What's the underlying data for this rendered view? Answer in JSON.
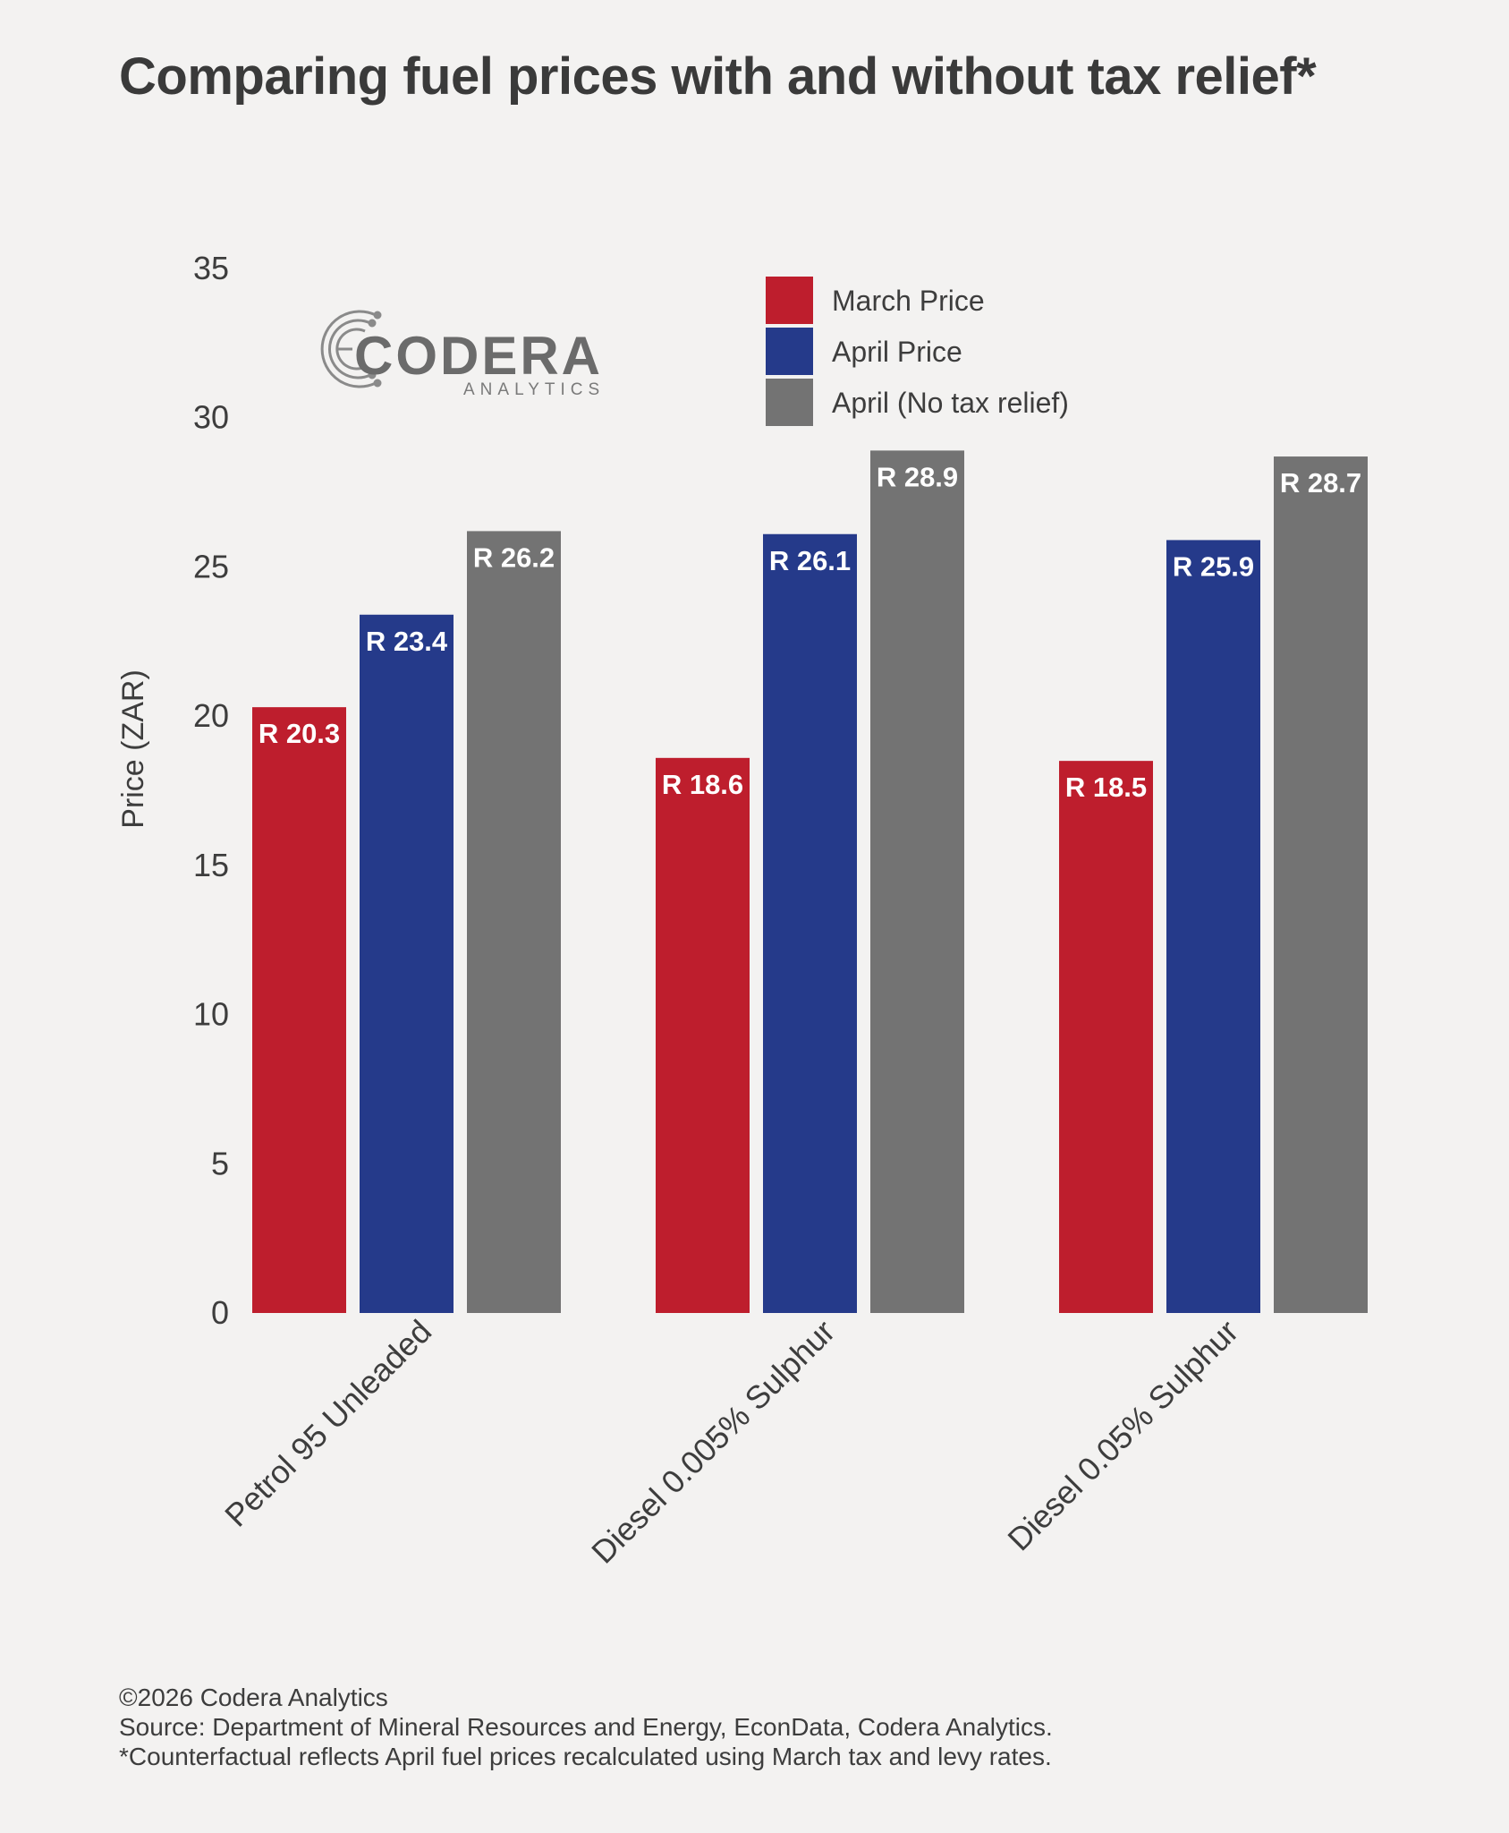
{
  "chart_data": {
    "type": "bar",
    "title": "Comparing fuel prices with and without tax relief*",
    "ylabel": "Price (ZAR)",
    "xlabel": "",
    "ylim": [
      0,
      35
    ],
    "yticks": [
      0,
      5,
      10,
      15,
      20,
      25,
      30,
      35
    ],
    "categories": [
      "Petrol 95 Unleaded",
      "Diesel 0.005% Sulphur",
      "Diesel 0.05% Sulphur"
    ],
    "series": [
      {
        "name": "March Price",
        "color": "#be1e2d",
        "values": [
          20.3,
          18.6,
          18.5
        ],
        "labels": [
          "R 20.3",
          "R 18.6",
          "R 18.5"
        ]
      },
      {
        "name": "April Price",
        "color": "#253a8a",
        "values": [
          23.4,
          26.1,
          25.9
        ],
        "labels": [
          "R 23.4",
          "R 26.1",
          "R 25.9"
        ]
      },
      {
        "name": "April (No tax relief)",
        "color": "#737373",
        "values": [
          26.2,
          28.9,
          28.7
        ],
        "labels": [
          "R 26.2",
          "R 28.9",
          "R 28.7"
        ]
      }
    ],
    "legend_position": "top-right",
    "grid": false
  },
  "logo": {
    "name": "CODERA",
    "tagline": "ANALYTICS"
  },
  "footer": {
    "copyright": "©2026 Codera Analytics",
    "source": "Source: Department of Mineral Resources and Energy, EconData, Codera Analytics.",
    "note": "*Counterfactual reflects April fuel prices recalculated using March tax and levy rates."
  }
}
